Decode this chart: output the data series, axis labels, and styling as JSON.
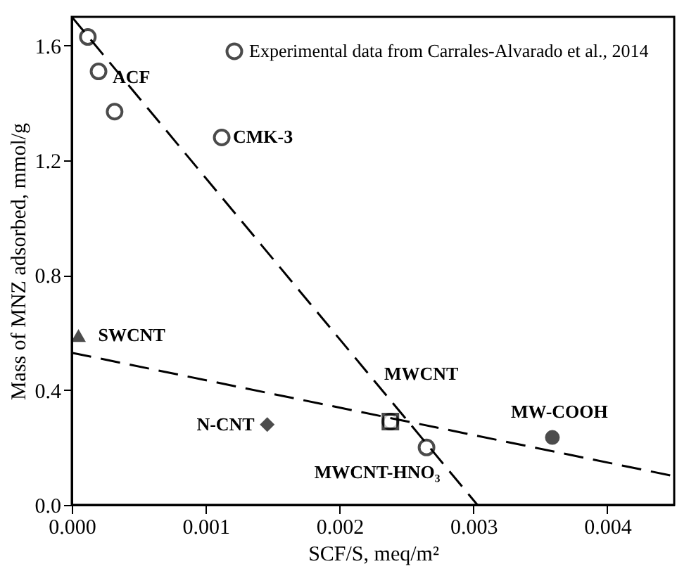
{
  "chart_data": {
    "type": "scatter",
    "xlabel": "SCF/S, meq/m²",
    "ylabel": "Mass of MNZ adsorbed, mmol/g",
    "xlim": [
      0,
      0.0045
    ],
    "ylim": [
      0,
      1.7
    ],
    "xticks": [
      {
        "value": 0,
        "label": "0.000"
      },
      0.001,
      0.002,
      0.003,
      0.004
    ],
    "yticks": [
      {
        "value": 0,
        "label": "0.0"
      },
      0.4,
      0.8,
      1.2,
      1.6
    ],
    "grid": false,
    "legend": "top right",
    "series": [
      {
        "name": "Experimental data from Carrales-Alvarado et al., 2014",
        "marker": "circle",
        "color": "#000000",
        "x": [
          0.00012,
          0.0002,
          0.00032,
          0.00112,
          0.00238,
          0.00265
        ],
        "values": [
          1.63,
          1.51,
          1.37,
          1.28,
          0.29,
          0.2
        ]
      },
      {
        "marker": "triangle",
        "color": "#000000",
        "x": [
          5e-05
        ],
        "values": [
          0.59
        ]
      },
      {
        "marker": "diamond",
        "color": "#000000",
        "x": [
          0.00146
        ],
        "values": [
          0.28
        ]
      },
      {
        "marker": "circle",
        "color": "#000000",
        "x": [
          0.00359
        ],
        "values": [
          0.235
        ]
      },
      {
        "marker": "square",
        "color": "#000000",
        "x": [
          0.00238
        ],
        "values": [
          0.29
        ]
      },
      {
        "type": "line",
        "line_style": "dashed",
        "color": "#000000",
        "x": [
          0,
          0.00303
        ],
        "values": [
          1.7,
          0
        ]
      },
      {
        "type": "line",
        "line_style": "dashed",
        "color": "#000000",
        "x": [
          0,
          0.0045
        ],
        "values": [
          0.53,
          0.1
        ]
      }
    ],
    "annotations": [
      {
        "text": "ACF",
        "x": 0.0002,
        "y": 1.51
      },
      {
        "text": "CMK-3",
        "x": 0.00112,
        "y": 1.28
      },
      {
        "text": "SWCNT",
        "x": 5e-05,
        "y": 0.59
      },
      {
        "text": "N-CNT",
        "x": 0.00146,
        "y": 0.28
      },
      {
        "text": "MWCNT",
        "x": 0.00238,
        "y": 0.29
      },
      {
        "text": "MWCNT-HNO₃",
        "x": 0.00265,
        "y": 0.2
      },
      {
        "text": "MW-COOH",
        "x": 0.00359,
        "y": 0.235
      }
    ]
  }
}
